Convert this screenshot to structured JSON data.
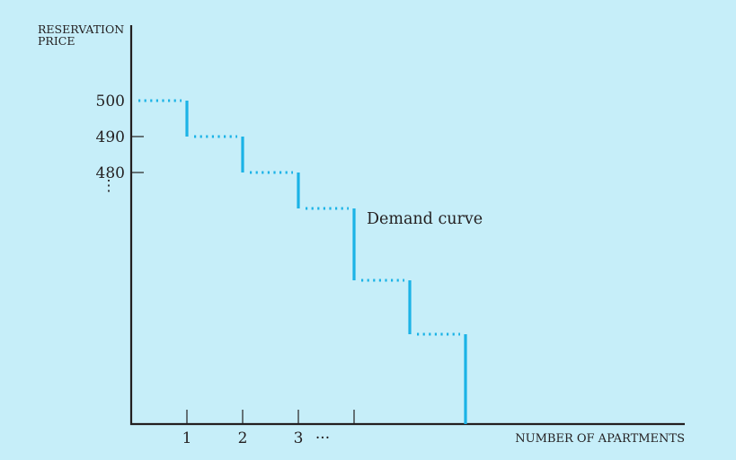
{
  "chart_data": {
    "type": "line",
    "ylabel_line1": "RESERVATION",
    "ylabel_line2": "PRICE",
    "xlabel": "NUMBER OF APARTMENTS",
    "y_tick_labels": [
      "500",
      "490",
      "480"
    ],
    "y_ellipsis": "⋮",
    "x_tick_labels": [
      "1",
      "2",
      "3"
    ],
    "x_ellipsis": "···",
    "annotation": "Demand curve",
    "series": [
      {
        "steps": [
          {
            "x0": 0,
            "x1": 1,
            "y": 500
          },
          {
            "x0": 1,
            "x1": 2,
            "y": 490
          },
          {
            "x0": 2,
            "x1": 3,
            "y": 480
          },
          {
            "x0": 3,
            "x1": 4,
            "y": 470
          },
          {
            "x0": 4,
            "x1": 5,
            "y": 450
          },
          {
            "x0": 5,
            "x1": 6,
            "y": 435
          }
        ]
      }
    ],
    "xlim": [
      0,
      10
    ],
    "ylim": [
      410,
      500
    ]
  },
  "colors": {
    "background": "#c6eef9",
    "curve": "#1bb3e6",
    "axis": "#231f20"
  }
}
